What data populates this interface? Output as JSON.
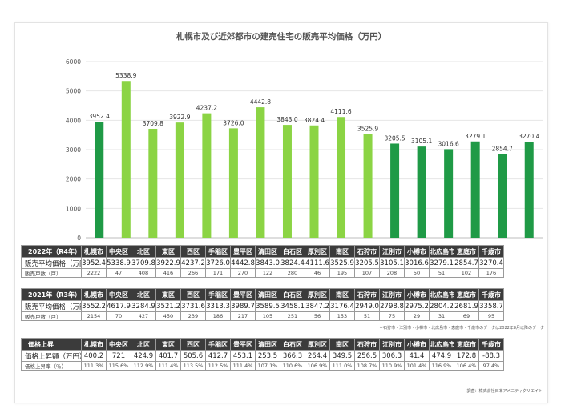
{
  "chart_data": {
    "type": "bar",
    "title": "札幌市及び近郊都市の建売住宅の販売平均価格（万円）",
    "categories": [
      "札幌市",
      "中央区",
      "北区",
      "東区",
      "西区",
      "手稲区",
      "豊平区",
      "清田区",
      "白石区",
      "厚別区",
      "南区",
      "石狩市",
      "江別市",
      "小樽市",
      "北広島市",
      "恵庭市",
      "千歳市"
    ],
    "values": [
      3952.4,
      5338.9,
      3709.8,
      3922.9,
      4237.2,
      3726.0,
      4442.8,
      3843.0,
      3824.4,
      4111.6,
      3525.9,
      3205.5,
      3105.1,
      3016.6,
      3279.1,
      2854.7,
      3270.4
    ],
    "value_labels": [
      "3952.4",
      "5338.9",
      "3709.8",
      "3922.9",
      "4237.2",
      "3726.0",
      "4442.8",
      "3843.0",
      "3824.4",
      "4111.6",
      "3525.9",
      "3205.5",
      "3105.1",
      "3016.6",
      "3279.1",
      "2854.7",
      "3270.4"
    ],
    "bar_groups": [
      "city",
      "ward",
      "ward",
      "ward",
      "ward",
      "ward",
      "ward",
      "ward",
      "ward",
      "ward",
      "ward",
      "city",
      "city",
      "city",
      "city",
      "city",
      "city"
    ],
    "colors": {
      "city": "#1f9a46",
      "ward": "#8bd444"
    },
    "ylim": [
      0,
      6000
    ],
    "yticks": [
      0,
      1000,
      2000,
      3000,
      4000,
      5000,
      6000
    ],
    "grid": true,
    "xlabel": "",
    "ylabel": ""
  },
  "tables": {
    "y2022": {
      "header": "2022年（R4年）",
      "row1_label": "販売平均価格（万円）",
      "row2_label": "販売戸数（戸）",
      "cols": [
        "札幌市",
        "中央区",
        "北区",
        "東区",
        "西区",
        "手稲区",
        "豊平区",
        "清田区",
        "白石区",
        "厚別区",
        "南区",
        "石狩市",
        "江別市",
        "小樽市",
        "北広島市",
        "恵庭市",
        "千歳市"
      ],
      "row1": [
        "3952.4",
        "5338.9",
        "3709.8",
        "3922.9",
        "4237.2",
        "3726.0",
        "4442.8",
        "3843.0",
        "3824.4",
        "4111.6",
        "3525.9",
        "3205.5",
        "3105.1",
        "3016.6",
        "3279.1",
        "2854.7",
        "3270.4"
      ],
      "row2": [
        "2222",
        "47",
        "408",
        "416",
        "266",
        "171",
        "270",
        "122",
        "280",
        "46",
        "195",
        "107",
        "208",
        "50",
        "51",
        "102",
        "176"
      ]
    },
    "y2021": {
      "header": "2021年（R3年）",
      "row1_label": "販売平均価格（万円）",
      "row2_label": "販売戸数（戸）",
      "cols": [
        "札幌市",
        "中央区",
        "北区",
        "東区",
        "西区",
        "手稲区",
        "豊平区",
        "清田区",
        "白石区",
        "厚別区",
        "南区",
        "石狩市",
        "江別市",
        "小樽市",
        "北広島市",
        "恵庭市",
        "千歳市"
      ],
      "row1": [
        "3552.2",
        "4617.9",
        "3284.9",
        "3521.2",
        "3731.6",
        "3313.3",
        "3989.7",
        "3589.5",
        "3458.1",
        "3847.2",
        "3176.4",
        "2949.0",
        "2798.8",
        "2975.2",
        "2804.2",
        "2681.9",
        "3358.7"
      ],
      "row2": [
        "2154",
        "70",
        "427",
        "450",
        "239",
        "186",
        "217",
        "105",
        "251",
        "56",
        "153",
        "51",
        "75",
        "29",
        "31",
        "69",
        "95"
      ]
    },
    "diff": {
      "header": "価格上昇",
      "row1_label": "価格上昇額（万円）",
      "row2_label": "価格上昇率（％）",
      "cols": [
        "札幌市",
        "中央区",
        "北区",
        "東区",
        "西区",
        "手稲区",
        "豊平区",
        "清田区",
        "白石区",
        "厚別区",
        "南区",
        "石狩市",
        "江別市",
        "小樽市",
        "北広島市",
        "恵庭市",
        "千歳市"
      ],
      "row1": [
        "400.2",
        "721",
        "424.9",
        "401.7",
        "505.6",
        "412.7",
        "453.1",
        "253.5",
        "366.3",
        "264.4",
        "349.5",
        "256.5",
        "306.3",
        "41.4",
        "474.9",
        "172.8",
        "-88.3"
      ],
      "row2": [
        "111.3%",
        "115.6%",
        "112.9%",
        "111.4%",
        "113.5%",
        "112.5%",
        "111.4%",
        "107.1%",
        "110.6%",
        "106.9%",
        "111.0%",
        "108.7%",
        "110.9%",
        "101.4%",
        "116.9%",
        "106.4%",
        "97.4%"
      ]
    }
  },
  "notes": {
    "data_note": "＊石狩市・江別市・小樽市・北広島市・恵庭市・千歳市のデータは2022年8月以降のデータ",
    "source": "調査：株式会社日本アメニティクリエイト"
  }
}
